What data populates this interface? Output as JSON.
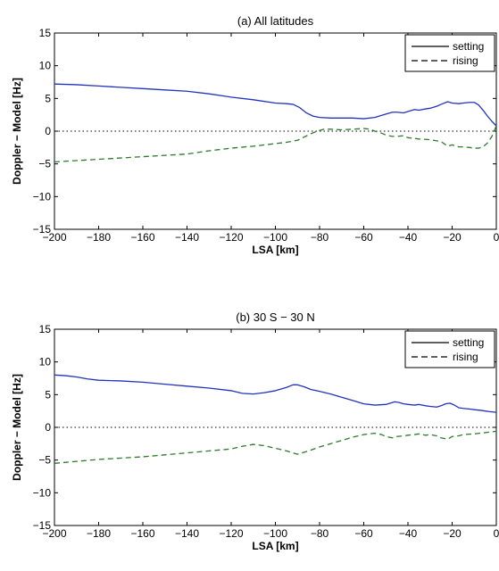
{
  "chart_data": [
    {
      "type": "line",
      "title": "(a) All latitudes",
      "xlabel": "LSA [km]",
      "ylabel": "Doppler − Model [Hz]",
      "xlim": [
        -200,
        0
      ],
      "ylim": [
        -15,
        15
      ],
      "xticks": [
        -200,
        -180,
        -160,
        -140,
        -120,
        -100,
        -80,
        -60,
        -40,
        -20,
        0
      ],
      "xtick_labels": [
        "−200",
        "−180",
        "−160",
        "−140",
        "−120",
        "−100",
        "−80",
        "−60",
        "−40",
        "−20",
        "0"
      ],
      "yticks": [
        -15,
        -10,
        -5,
        0,
        5,
        10,
        15
      ],
      "ytick_labels": [
        "−15",
        "−10",
        "−5",
        "0",
        "5",
        "10",
        "15"
      ],
      "legend_position": "top-right",
      "reference_line": 0,
      "series": [
        {
          "name": "setting",
          "style": "solid",
          "color": "#2233bb",
          "x": [
            -200,
            -190,
            -180,
            -170,
            -160,
            -150,
            -140,
            -130,
            -120,
            -110,
            -100,
            -95,
            -92,
            -89,
            -86,
            -83,
            -80,
            -75,
            -70,
            -65,
            -60,
            -55,
            -50,
            -47,
            -45,
            -42,
            -40,
            -37,
            -35,
            -32,
            -30,
            -27,
            -25,
            -22,
            -20,
            -17,
            -15,
            -12,
            -10,
            -8,
            -6,
            -4,
            -2,
            0
          ],
          "y": [
            7.2,
            7.1,
            6.9,
            6.7,
            6.5,
            6.3,
            6.1,
            5.7,
            5.2,
            4.8,
            4.3,
            4.2,
            4.1,
            3.6,
            2.8,
            2.3,
            2.1,
            2.0,
            2.0,
            2.0,
            1.9,
            2.1,
            2.6,
            2.9,
            2.9,
            2.8,
            3.0,
            3.3,
            3.2,
            3.4,
            3.5,
            3.8,
            4.1,
            4.5,
            4.3,
            4.2,
            4.3,
            4.4,
            4.4,
            4.0,
            3.2,
            2.3,
            1.5,
            0.8
          ]
        },
        {
          "name": "rising",
          "style": "dashed",
          "color": "#2d7a2d",
          "x": [
            -200,
            -190,
            -180,
            -170,
            -160,
            -150,
            -140,
            -130,
            -120,
            -110,
            -100,
            -95,
            -90,
            -87,
            -84,
            -81,
            -78,
            -75,
            -70,
            -65,
            -60,
            -57,
            -55,
            -52,
            -50,
            -47,
            -45,
            -42,
            -40,
            -37,
            -35,
            -30,
            -25,
            -22,
            -20,
            -17,
            -15,
            -12,
            -10,
            -8,
            -6,
            -4,
            -2,
            0
          ],
          "y": [
            -4.7,
            -4.5,
            -4.3,
            -4.1,
            -3.9,
            -3.7,
            -3.5,
            -3.0,
            -2.6,
            -2.3,
            -1.9,
            -1.7,
            -1.4,
            -0.9,
            -0.4,
            0.0,
            0.3,
            0.3,
            0.2,
            0.3,
            0.4,
            0.3,
            0.0,
            -0.3,
            -0.6,
            -0.8,
            -0.8,
            -0.7,
            -1.0,
            -1.1,
            -1.2,
            -1.3,
            -1.6,
            -2.3,
            -2.1,
            -2.4,
            -2.4,
            -2.5,
            -2.6,
            -2.6,
            -2.4,
            -1.8,
            -0.8,
            0.8
          ]
        }
      ]
    },
    {
      "type": "line",
      "title": "(b) 30 S − 30 N",
      "xlabel": "LSA [km]",
      "ylabel": "Doppler − Model [Hz]",
      "xlim": [
        -200,
        0
      ],
      "ylim": [
        -15,
        15
      ],
      "xticks": [
        -200,
        -180,
        -160,
        -140,
        -120,
        -100,
        -80,
        -60,
        -40,
        -20,
        0
      ],
      "xtick_labels": [
        "−200",
        "−180",
        "−160",
        "−140",
        "−120",
        "−100",
        "−80",
        "−60",
        "−40",
        "−20",
        "0"
      ],
      "yticks": [
        -15,
        -10,
        -5,
        0,
        5,
        10,
        15
      ],
      "ytick_labels": [
        "−15",
        "−10",
        "−5",
        "0",
        "5",
        "10",
        "15"
      ],
      "legend_position": "top-right",
      "reference_line": 0,
      "series": [
        {
          "name": "setting",
          "style": "solid",
          "color": "#2233bb",
          "x": [
            -200,
            -195,
            -190,
            -185,
            -180,
            -170,
            -160,
            -150,
            -140,
            -130,
            -120,
            -115,
            -110,
            -105,
            -100,
            -95,
            -92,
            -90,
            -87,
            -84,
            -80,
            -75,
            -70,
            -65,
            -60,
            -55,
            -50,
            -48,
            -46,
            -44,
            -42,
            -40,
            -37,
            -35,
            -32,
            -30,
            -27,
            -25,
            -23,
            -21,
            -19,
            -17,
            -15,
            -12,
            -10,
            -7,
            -5,
            -3,
            0
          ],
          "y": [
            8.0,
            7.9,
            7.7,
            7.4,
            7.2,
            7.1,
            6.9,
            6.6,
            6.3,
            6.0,
            5.6,
            5.2,
            5.1,
            5.3,
            5.6,
            6.1,
            6.5,
            6.5,
            6.2,
            5.8,
            5.5,
            5.1,
            4.6,
            4.1,
            3.6,
            3.4,
            3.5,
            3.7,
            3.9,
            3.8,
            3.6,
            3.5,
            3.4,
            3.5,
            3.3,
            3.2,
            3.1,
            3.3,
            3.6,
            3.7,
            3.4,
            3.0,
            2.9,
            2.8,
            2.7,
            2.6,
            2.5,
            2.4,
            2.3
          ]
        },
        {
          "name": "rising",
          "style": "dashed",
          "color": "#2d7a2d",
          "x": [
            -200,
            -190,
            -180,
            -170,
            -160,
            -150,
            -140,
            -130,
            -120,
            -115,
            -110,
            -105,
            -100,
            -95,
            -90,
            -85,
            -80,
            -75,
            -70,
            -65,
            -60,
            -55,
            -52,
            -50,
            -47,
            -45,
            -42,
            -40,
            -37,
            -35,
            -32,
            -30,
            -27,
            -25,
            -22,
            -20,
            -17,
            -15,
            -10,
            -5,
            0
          ],
          "y": [
            -5.5,
            -5.2,
            -4.9,
            -4.7,
            -4.5,
            -4.2,
            -3.9,
            -3.6,
            -3.3,
            -2.9,
            -2.6,
            -2.8,
            -3.2,
            -3.6,
            -4.1,
            -3.6,
            -3.0,
            -2.5,
            -2.0,
            -1.5,
            -1.1,
            -0.9,
            -1.1,
            -1.4,
            -1.6,
            -1.4,
            -1.3,
            -1.2,
            -1.1,
            -1.0,
            -1.2,
            -1.1,
            -1.3,
            -1.6,
            -1.8,
            -1.4,
            -1.3,
            -1.1,
            -1.0,
            -0.8,
            -0.6
          ]
        }
      ]
    }
  ]
}
